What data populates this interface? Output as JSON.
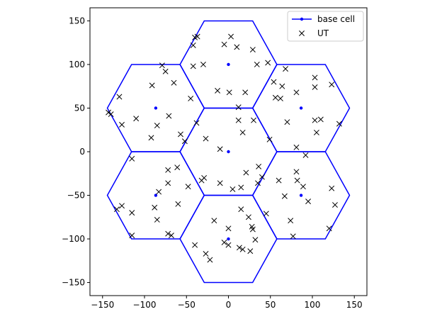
{
  "chart_data": {
    "type": "scatter",
    "title": "",
    "xlabel": "",
    "ylabel": "",
    "xlim": [
      -165,
      165
    ],
    "ylim": [
      -165,
      165
    ],
    "xticks": [
      -150,
      -100,
      -50,
      0,
      50,
      100,
      150
    ],
    "yticks": [
      -150,
      -100,
      -50,
      0,
      50,
      100,
      150
    ],
    "grid": false,
    "legend_position": "upper-right",
    "colors": {
      "cells": "#0000ff",
      "ut": "#000000"
    },
    "hexagon_radius": 57.7,
    "series": [
      {
        "name": "base cell",
        "marker": "dot-line",
        "points": [
          [
            0,
            0
          ],
          [
            0,
            100
          ],
          [
            0,
            -100
          ],
          [
            -86.6,
            50
          ],
          [
            86.6,
            50
          ],
          [
            -86.6,
            -50
          ],
          [
            86.6,
            -50
          ]
        ]
      },
      {
        "name": "UT",
        "marker": "x",
        "points": [
          [
            -40,
            131
          ],
          [
            -42,
            122
          ],
          [
            -37,
            132
          ],
          [
            -5,
            123
          ],
          [
            3,
            132
          ],
          [
            10,
            120
          ],
          [
            29,
            117
          ],
          [
            -42,
            98
          ],
          [
            -30,
            100
          ],
          [
            34,
            100
          ],
          [
            47,
            102
          ],
          [
            68,
            95
          ],
          [
            -79,
            99
          ],
          [
            -75,
            92
          ],
          [
            -65,
            79
          ],
          [
            -91,
            76
          ],
          [
            -130,
            63
          ],
          [
            -143,
            45
          ],
          [
            -140,
            43
          ],
          [
            -127,
            31
          ],
          [
            -110,
            38
          ],
          [
            -85,
            30
          ],
          [
            -71,
            41
          ],
          [
            -57,
            20
          ],
          [
            -52,
            12
          ],
          [
            -92,
            16
          ],
          [
            -45,
            61
          ],
          [
            -38,
            33
          ],
          [
            -27,
            15
          ],
          [
            -10,
            3
          ],
          [
            -13,
            70
          ],
          [
            1,
            68
          ],
          [
            20,
            68
          ],
          [
            12,
            51
          ],
          [
            12,
            36
          ],
          [
            17,
            22
          ],
          [
            30,
            36
          ],
          [
            49,
            14
          ],
          [
            54,
            80
          ],
          [
            56,
            62
          ],
          [
            62,
            61
          ],
          [
            64,
            75
          ],
          [
            70,
            34
          ],
          [
            81,
            68
          ],
          [
            103,
            85
          ],
          [
            103,
            74
          ],
          [
            123,
            77
          ],
          [
            103,
            36
          ],
          [
            110,
            37
          ],
          [
            105,
            22
          ],
          [
            132,
            32
          ],
          [
            81,
            5
          ],
          [
            92,
            -4
          ],
          [
            -115,
            -8
          ],
          [
            -72,
            -21
          ],
          [
            -61,
            -18
          ],
          [
            -72,
            -36
          ],
          [
            -48,
            -40
          ],
          [
            -29,
            -30
          ],
          [
            -32,
            -33
          ],
          [
            -10,
            -36
          ],
          [
            5,
            -43
          ],
          [
            15,
            -41
          ],
          [
            21,
            -24
          ],
          [
            36,
            -17
          ],
          [
            35,
            -36
          ],
          [
            40,
            -29
          ],
          [
            60,
            -33
          ],
          [
            67,
            -51
          ],
          [
            81,
            -23
          ],
          [
            82,
            -33
          ],
          [
            89,
            -40
          ],
          [
            95,
            -57
          ],
          [
            -83,
            -46
          ],
          [
            -60,
            -60
          ],
          [
            -133,
            -66
          ],
          [
            -127,
            -62
          ],
          [
            -115,
            -70
          ],
          [
            -88,
            -64
          ],
          [
            -85,
            -78
          ],
          [
            -72,
            -94
          ],
          [
            -68,
            -96
          ],
          [
            -115,
            -96
          ],
          [
            -17,
            -79
          ],
          [
            0,
            -88
          ],
          [
            -5,
            -104
          ],
          [
            0,
            -107
          ],
          [
            13,
            -110
          ],
          [
            17,
            -112
          ],
          [
            15,
            -66
          ],
          [
            24,
            -75
          ],
          [
            28,
            -86
          ],
          [
            29,
            -89
          ],
          [
            32,
            -101
          ],
          [
            45,
            -71
          ],
          [
            26,
            -114
          ],
          [
            -27,
            -117
          ],
          [
            -22,
            -124
          ],
          [
            -40,
            -107
          ],
          [
            74,
            -79
          ],
          [
            77,
            -97
          ],
          [
            123,
            -42
          ],
          [
            127,
            -61
          ],
          [
            120,
            -88
          ]
        ]
      }
    ]
  }
}
